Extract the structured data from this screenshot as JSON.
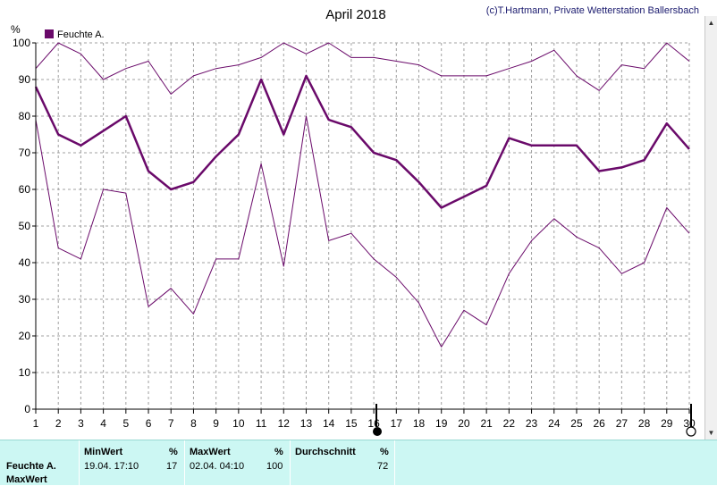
{
  "header": {
    "title": "April 2018",
    "copyright": "(c)T.Hartmann, Private Wetterstation Ballersbach"
  },
  "colors": {
    "series": "#6a0a6a",
    "grid": "#a0a0a0",
    "table_bg": "#ccf7f3"
  },
  "chart_data": {
    "type": "line",
    "title": "April 2018",
    "ylabel": "%",
    "xlabel": "",
    "ylim": [
      0,
      100
    ],
    "yticks": [
      0,
      10,
      20,
      30,
      40,
      50,
      60,
      70,
      80,
      90,
      100
    ],
    "x": [
      1,
      2,
      3,
      4,
      5,
      6,
      7,
      8,
      9,
      10,
      11,
      12,
      13,
      14,
      15,
      16,
      17,
      18,
      19,
      20,
      21,
      22,
      23,
      24,
      25,
      26,
      27,
      28,
      29,
      30
    ],
    "grid": true,
    "legend": "top-left",
    "series": [
      {
        "name": "Feuchte A.",
        "role": "max",
        "values": [
          93,
          100,
          97,
          90,
          93,
          95,
          86,
          91,
          93,
          94,
          96,
          100,
          97,
          100,
          96,
          96,
          95,
          94,
          91,
          91,
          91,
          93,
          95,
          98,
          91,
          87,
          94,
          93,
          100,
          95
        ]
      },
      {
        "name": "",
        "role": "avg",
        "values": [
          88,
          75,
          72,
          76,
          80,
          65,
          60,
          62,
          69,
          75,
          90,
          75,
          91,
          79,
          77,
          70,
          68,
          62,
          55,
          58,
          61,
          74,
          72,
          72,
          72,
          65,
          66,
          68,
          78,
          71
        ]
      },
      {
        "name": "",
        "role": "min",
        "values": [
          79,
          44,
          41,
          60,
          59,
          28,
          33,
          26,
          41,
          41,
          67,
          39,
          80,
          46,
          48,
          41,
          36,
          29,
          17,
          27,
          23,
          37,
          46,
          52,
          47,
          44,
          37,
          40,
          55,
          48
        ]
      }
    ]
  },
  "table": {
    "row_label": "Feuchte A.",
    "row_label2": "MaxWert",
    "min_header": "MinWert",
    "min_unit": "%",
    "min_time": "19.04.  17:10",
    "min_value": "17",
    "max_header": "MaxWert",
    "max_unit": "%",
    "max_time": "02.04.  04:10",
    "max_value": "100",
    "avg_header": "Durchschnitt",
    "avg_unit": "%",
    "avg_value": "72"
  },
  "icons": {
    "scroll_up": "triangle-up-icon",
    "scroll_down": "triangle-down-icon"
  }
}
